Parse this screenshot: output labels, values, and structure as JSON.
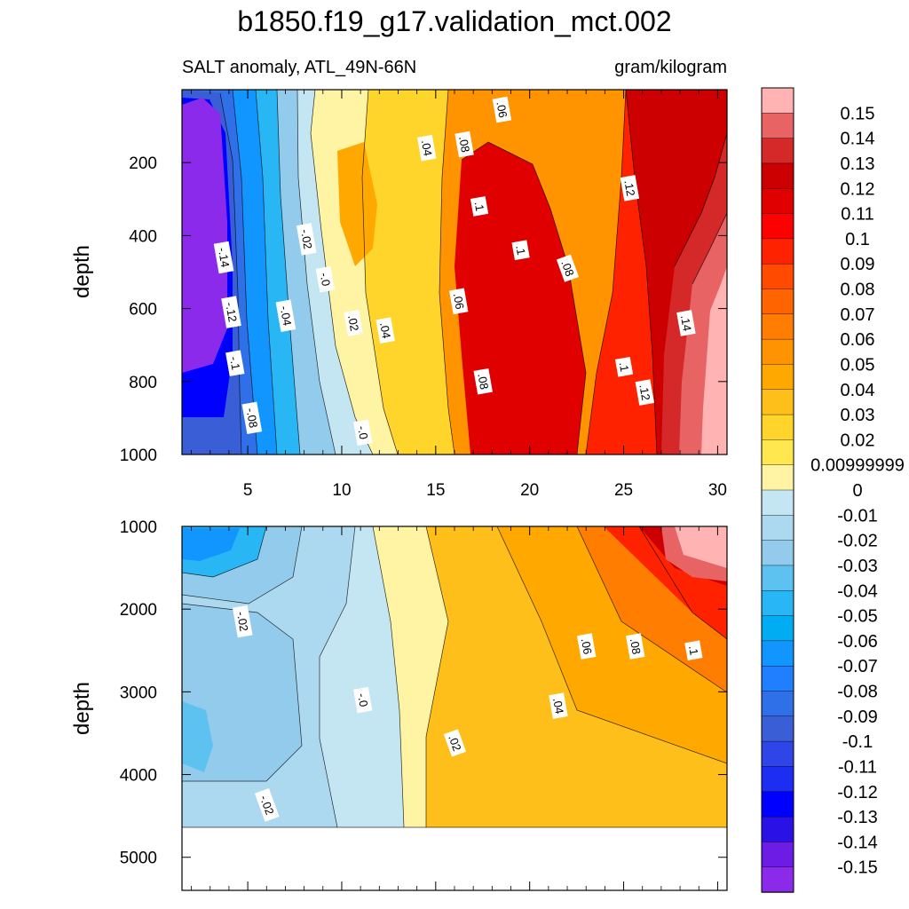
{
  "chart_data": [
    {
      "type": "heatmap",
      "title": "b1850.f19_g17.validation_mct.002",
      "subtitle_left": "SALT anomaly, ATL_49N-66N",
      "subtitle_right": "gram/kilogram",
      "xlabel": "",
      "ylabel": "depth",
      "xlim": [
        1.5,
        30.5
      ],
      "ylim": [
        1000,
        0
      ],
      "x_ticks": [
        5,
        10,
        15,
        20,
        25,
        30
      ],
      "y_ticks": [
        200,
        400,
        600,
        800,
        1000
      ],
      "contour_labels": [
        {
          "text": "-.14",
          "x": 3.7,
          "y": 460
        },
        {
          "text": "-.12",
          "x": 4.1,
          "y": 610
        },
        {
          "text": "-.1",
          "x": 4.3,
          "y": 750
        },
        {
          "text": "-.08",
          "x": 5.2,
          "y": 900
        },
        {
          "text": "-.04",
          "x": 7.0,
          "y": 620
        },
        {
          "text": "-.02",
          "x": 8.1,
          "y": 410
        },
        {
          "text": "-.0",
          "x": 9.1,
          "y": 520
        },
        {
          "text": ".02",
          "x": 10.6,
          "y": 640
        },
        {
          "text": ".04",
          "x": 12.3,
          "y": 660
        },
        {
          "text": "-.0",
          "x": 11.1,
          "y": 940
        },
        {
          "text": ".04",
          "x": 14.5,
          "y": 160
        },
        {
          "text": ".08",
          "x": 16.5,
          "y": 150
        },
        {
          "text": ".06",
          "x": 18.5,
          "y": 55
        },
        {
          "text": ".1",
          "x": 17.3,
          "y": 320
        },
        {
          "text": ".1",
          "x": 19.5,
          "y": 440
        },
        {
          "text": ".08",
          "x": 22.0,
          "y": 490
        },
        {
          "text": ".06",
          "x": 16.2,
          "y": 580
        },
        {
          "text": ".08",
          "x": 17.5,
          "y": 800
        },
        {
          "text": ".12",
          "x": 25.3,
          "y": 270
        },
        {
          "text": ".14",
          "x": 28.3,
          "y": 640
        },
        {
          "text": ".1",
          "x": 25.0,
          "y": 760
        },
        {
          "text": ".12",
          "x": 26.1,
          "y": 830
        }
      ]
    },
    {
      "type": "heatmap",
      "xlabel": "",
      "ylabel": "depth",
      "xlim": [
        1.5,
        30.5
      ],
      "ylim": [
        5400,
        1000
      ],
      "y_ticks": [
        1000,
        2000,
        3000,
        4000,
        5000
      ],
      "data_bottom_depth": 4620,
      "contour_labels": [
        {
          "text": "-.02",
          "x": 4.7,
          "y": 2150
        },
        {
          "text": "-.0",
          "x": 11.1,
          "y": 3100
        },
        {
          "text": ".02",
          "x": 16.0,
          "y": 3620
        },
        {
          "text": ".04",
          "x": 21.5,
          "y": 3170
        },
        {
          "text": ".06",
          "x": 23.0,
          "y": 2450
        },
        {
          "text": ".08",
          "x": 25.6,
          "y": 2450
        },
        {
          "text": ".1",
          "x": 28.7,
          "y": 2500
        },
        {
          "text": "-.02",
          "x": 6.0,
          "y": 4370
        }
      ]
    }
  ],
  "colorbar": {
    "labels": [
      "0.15",
      "0.14",
      "0.13",
      "0.12",
      "0.11",
      "0.1",
      "0.09",
      "0.08",
      "0.07",
      "0.06",
      "0.05",
      "0.04",
      "0.03",
      "0.02",
      "0.00999999",
      "0",
      "-0.01",
      "-0.02",
      "-0.03",
      "-0.04",
      "-0.05",
      "-0.06",
      "-0.07",
      "-0.08",
      "-0.09",
      "-0.1",
      "-0.11",
      "-0.12",
      "-0.13",
      "-0.14",
      "-0.15"
    ],
    "colors": [
      "#ffb3b3",
      "#e86464",
      "#d52828",
      "#cc0000",
      "#e00000",
      "#ff0000",
      "#ff2200",
      "#ff4a00",
      "#ff6400",
      "#ff7d00",
      "#ff9400",
      "#ffa900",
      "#ffbf1b",
      "#ffd52c",
      "#ffe74f",
      "#fff3a4",
      "#c3e6f2",
      "#acd9ef",
      "#93cbec",
      "#5ec2f0",
      "#28b7f4",
      "#00adf2",
      "#1195ff",
      "#1f7fff",
      "#2f6fe8",
      "#3a5ed6",
      "#2f45e8",
      "#1d2df2",
      "#0000ff",
      "#2a12e6",
      "#6d1ce6",
      "#8b2aeb"
    ]
  }
}
